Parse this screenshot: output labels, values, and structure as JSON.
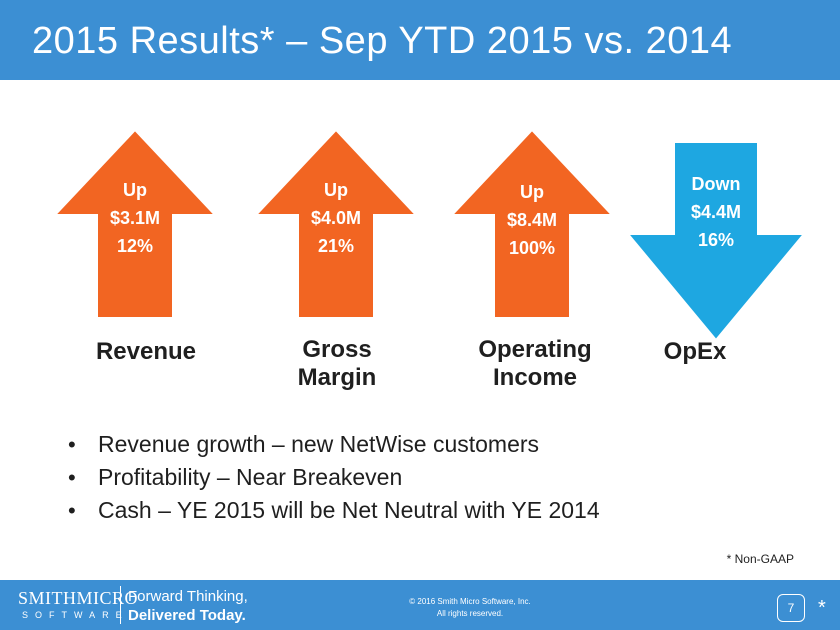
{
  "slide": {
    "title": "2015 Results* – Sep YTD 2015 vs. 2014",
    "metrics": [
      {
        "label": "Revenue",
        "direction": "Up",
        "amount": "$3.1M",
        "percent": "12%"
      },
      {
        "label": "Gross Margin",
        "direction": "Up",
        "amount": "$4.0M",
        "percent": "21%"
      },
      {
        "label": "Operating Income",
        "direction": "Up",
        "amount": "$8.4M",
        "percent": "100%"
      },
      {
        "label": "OpEx",
        "direction": "Down",
        "amount": "$4.4M",
        "percent": "16%"
      }
    ],
    "bullets": [
      "Revenue growth – new NetWise customers",
      "Profitability – Near Breakeven",
      "Cash – YE 2015 will be Net Neutral with YE 2014"
    ],
    "footnote": "* Non-GAAP"
  },
  "footer": {
    "logo_main": "SMITHMICRO",
    "logo_sub": "SOFTWARE",
    "tagline_1": "Forward Thinking,",
    "tagline_2": "Delivered Today.",
    "copyright_1": "© 2016 Smith Micro Software, Inc.",
    "copyright_2": "All rights reserved.",
    "page_number": "7",
    "star": "*"
  },
  "colors": {
    "title_bar": "#3c8fd3",
    "up_arrow": "#f26522",
    "down_arrow": "#1ea7e1",
    "footer": "#3c8fd3"
  }
}
